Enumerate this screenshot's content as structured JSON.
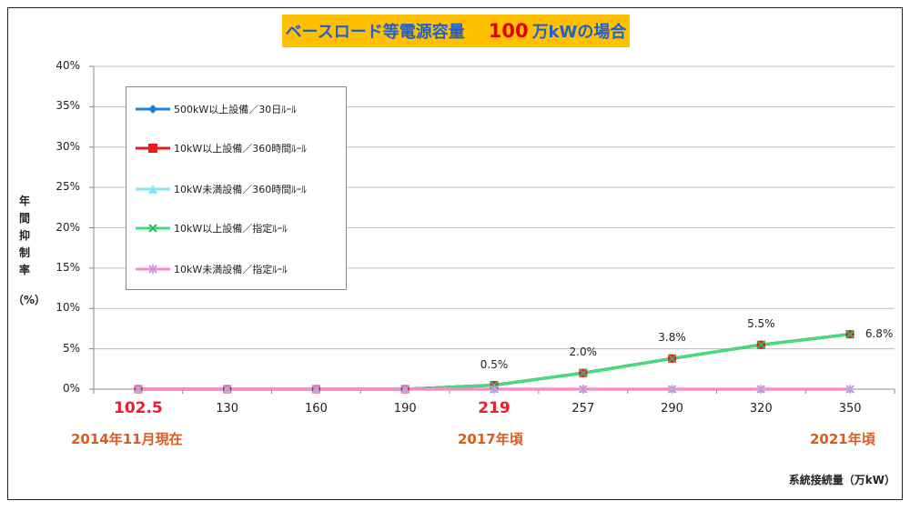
{
  "title": {
    "part1": "ベースロード等電源容量",
    "number": "100",
    "part2": "万kWの場合"
  },
  "y_axis_title": {
    "chars": [
      "年",
      "間",
      "抑",
      "制",
      "率"
    ],
    "unit": "（%）"
  },
  "x_axis_title": "系統接続量（万kW）",
  "annotations": {
    "left": "2014年11月現在",
    "middle": "2017年頃",
    "right": "2021年頃"
  },
  "colors": {
    "title_bg": "#FFC000",
    "title_text": "#1F5FD0",
    "title_number": "#E00000",
    "highlight": "#E8202A",
    "note": "#E05A1E"
  },
  "chart_data": {
    "type": "line",
    "title": "ベースロード等電源容量　100 万kWの場合",
    "xlabel": "系統接続量（万kW）",
    "ylabel": "年間抑制率（%）",
    "categories": [
      "102.5",
      "130",
      "160",
      "190",
      "219",
      "257",
      "290",
      "320",
      "350"
    ],
    "highlighted_categories": [
      "102.5",
      "219"
    ],
    "yticks": [
      "0%",
      "5%",
      "10%",
      "15%",
      "20%",
      "25%",
      "30%",
      "35%",
      "40%"
    ],
    "ylim": [
      0,
      40
    ],
    "grid": true,
    "legend_position": "top-left",
    "series": [
      {
        "name": "500kW以上設備／30日ﾙｰﾙ",
        "color": "#1E7FD6",
        "marker": "diamond",
        "values": [
          0,
          0,
          0,
          0,
          0.5,
          2.0,
          3.8,
          5.5,
          6.8
        ]
      },
      {
        "name": "10kW以上設備／360時間ﾙｰﾙ",
        "color": "#E81C1C",
        "marker": "square",
        "values": [
          0,
          0,
          0,
          0,
          0.5,
          2.0,
          3.8,
          5.5,
          6.8
        ]
      },
      {
        "name": "10kW未満設備／360時間ﾙｰﾙ",
        "color": "#7FE6F2",
        "marker": "triangle",
        "values": [
          0,
          0,
          0,
          0,
          0,
          0,
          0,
          0,
          0
        ]
      },
      {
        "name": "10kW以上設備／指定ﾙｰﾙ",
        "color": "#3EE07A",
        "marker": "x",
        "values": [
          0,
          0,
          0,
          0,
          0.5,
          2.0,
          3.8,
          5.5,
          6.8
        ]
      },
      {
        "name": "10kW未満設備／指定ﾙｰﾙ",
        "color": "#FF88C8",
        "marker": "star",
        "values": [
          0,
          0,
          0,
          0,
          0,
          0,
          0,
          0,
          0
        ]
      }
    ],
    "data_labels": [
      "",
      "",
      "",
      "",
      "0.5%",
      "2.0%",
      "3.8%",
      "5.5%",
      "6.8%"
    ]
  }
}
